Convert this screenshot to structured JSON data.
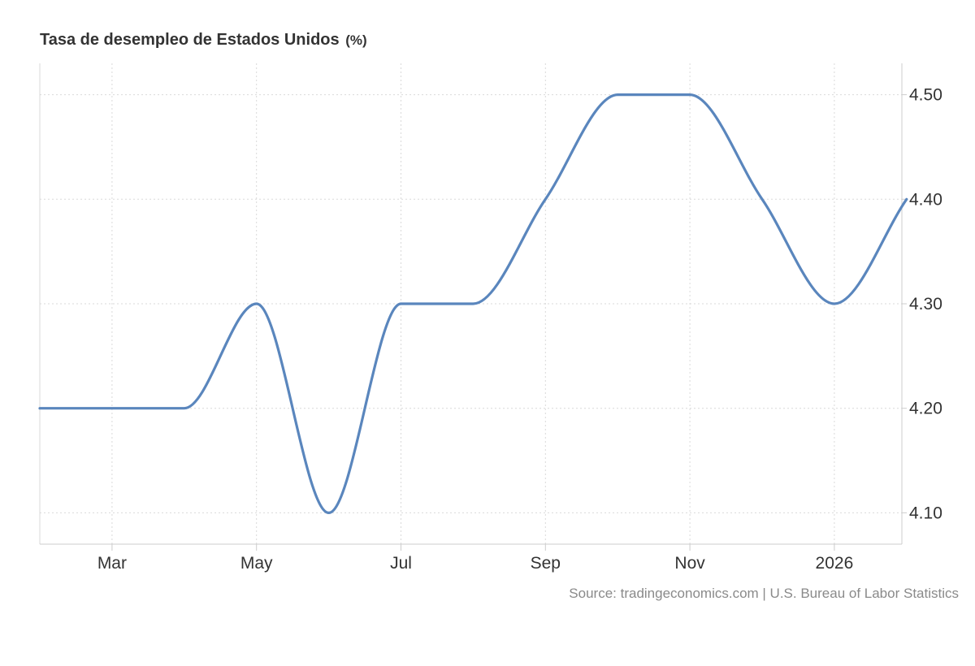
{
  "title": "Tasa de desempleo de Estados Unidos",
  "unit": "(%)",
  "source": "Source: tradingeconomics.com | U.S. Bureau of Labor Statistics",
  "colors": {
    "line": "#5a86bd",
    "grid": "#d9d9d9",
    "axis": "#cccccc",
    "tick_text": "#333333"
  },
  "chart_data": {
    "type": "line",
    "title": "Tasa de desempleo de Estados Unidos",
    "unit": "(%)",
    "y_axis_side": "right",
    "grid": true,
    "ylim": [
      4.07,
      4.53
    ],
    "y_ticks": [
      "4.10",
      "4.20",
      "4.30",
      "4.40",
      "4.50"
    ],
    "x_ticks": [
      "Mar",
      "May",
      "Jul",
      "Sep",
      "Nov",
      "2026"
    ],
    "series": [
      {
        "x": [
          "2025-02",
          "2025-03",
          "2025-04",
          "2025-05",
          "2025-06",
          "2025-07",
          "2025-08",
          "2025-09",
          "2025-10",
          "2025-11",
          "2025-12",
          "2026-01",
          "2026-02"
        ],
        "values": [
          4.2,
          4.2,
          4.2,
          4.3,
          4.1,
          4.3,
          4.3,
          4.4,
          4.5,
          4.5,
          4.4,
          4.3,
          4.4
        ]
      }
    ]
  }
}
